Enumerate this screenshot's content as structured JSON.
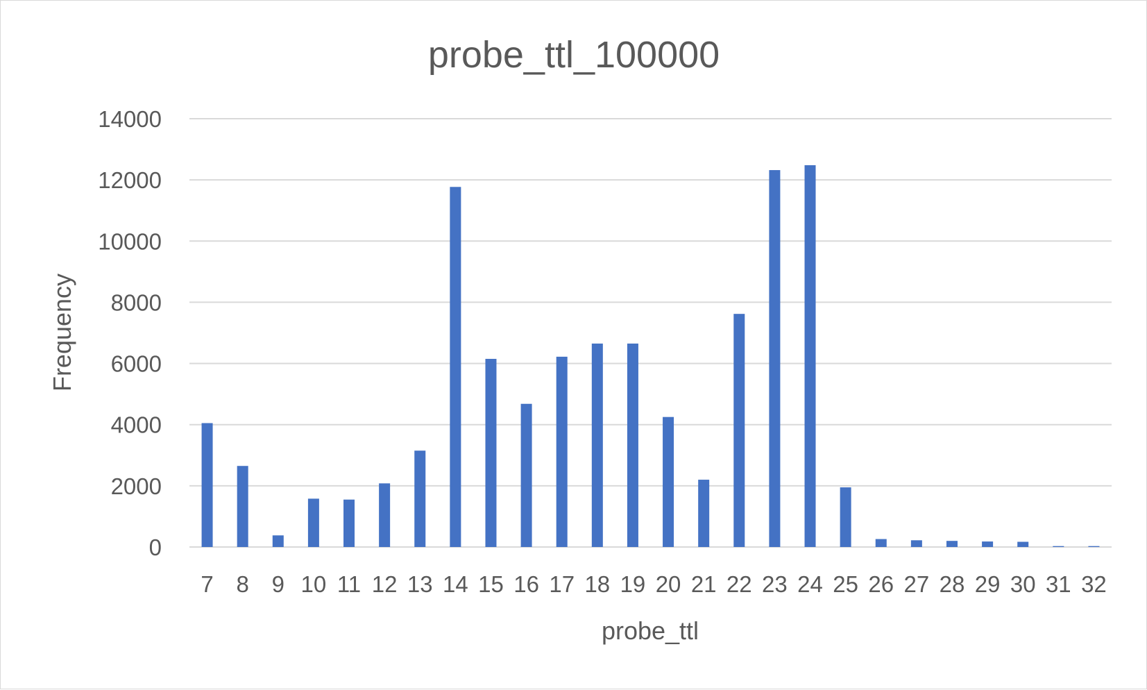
{
  "chart_data": {
    "type": "bar",
    "title": "probe_ttl_100000",
    "xlabel": "probe_ttl",
    "ylabel": "Frequency",
    "ylim": [
      0,
      14000
    ],
    "yticks": [
      "0",
      "2000",
      "4000",
      "6000",
      "8000",
      "10000",
      "12000",
      "14000"
    ],
    "grid": true,
    "legend": "none",
    "categories": [
      "7",
      "8",
      "9",
      "10",
      "11",
      "12",
      "13",
      "14",
      "15",
      "16",
      "17",
      "18",
      "19",
      "20",
      "21",
      "22",
      "23",
      "24",
      "25",
      "26",
      "27",
      "28",
      "29",
      "30",
      "31",
      "32"
    ],
    "values": [
      4050,
      2650,
      380,
      1580,
      1550,
      2080,
      3150,
      11770,
      6150,
      4680,
      6220,
      6650,
      6650,
      4250,
      2200,
      7620,
      12320,
      12480,
      1950,
      260,
      220,
      200,
      180,
      170,
      30,
      30
    ],
    "bar_color": "#4472c4"
  }
}
